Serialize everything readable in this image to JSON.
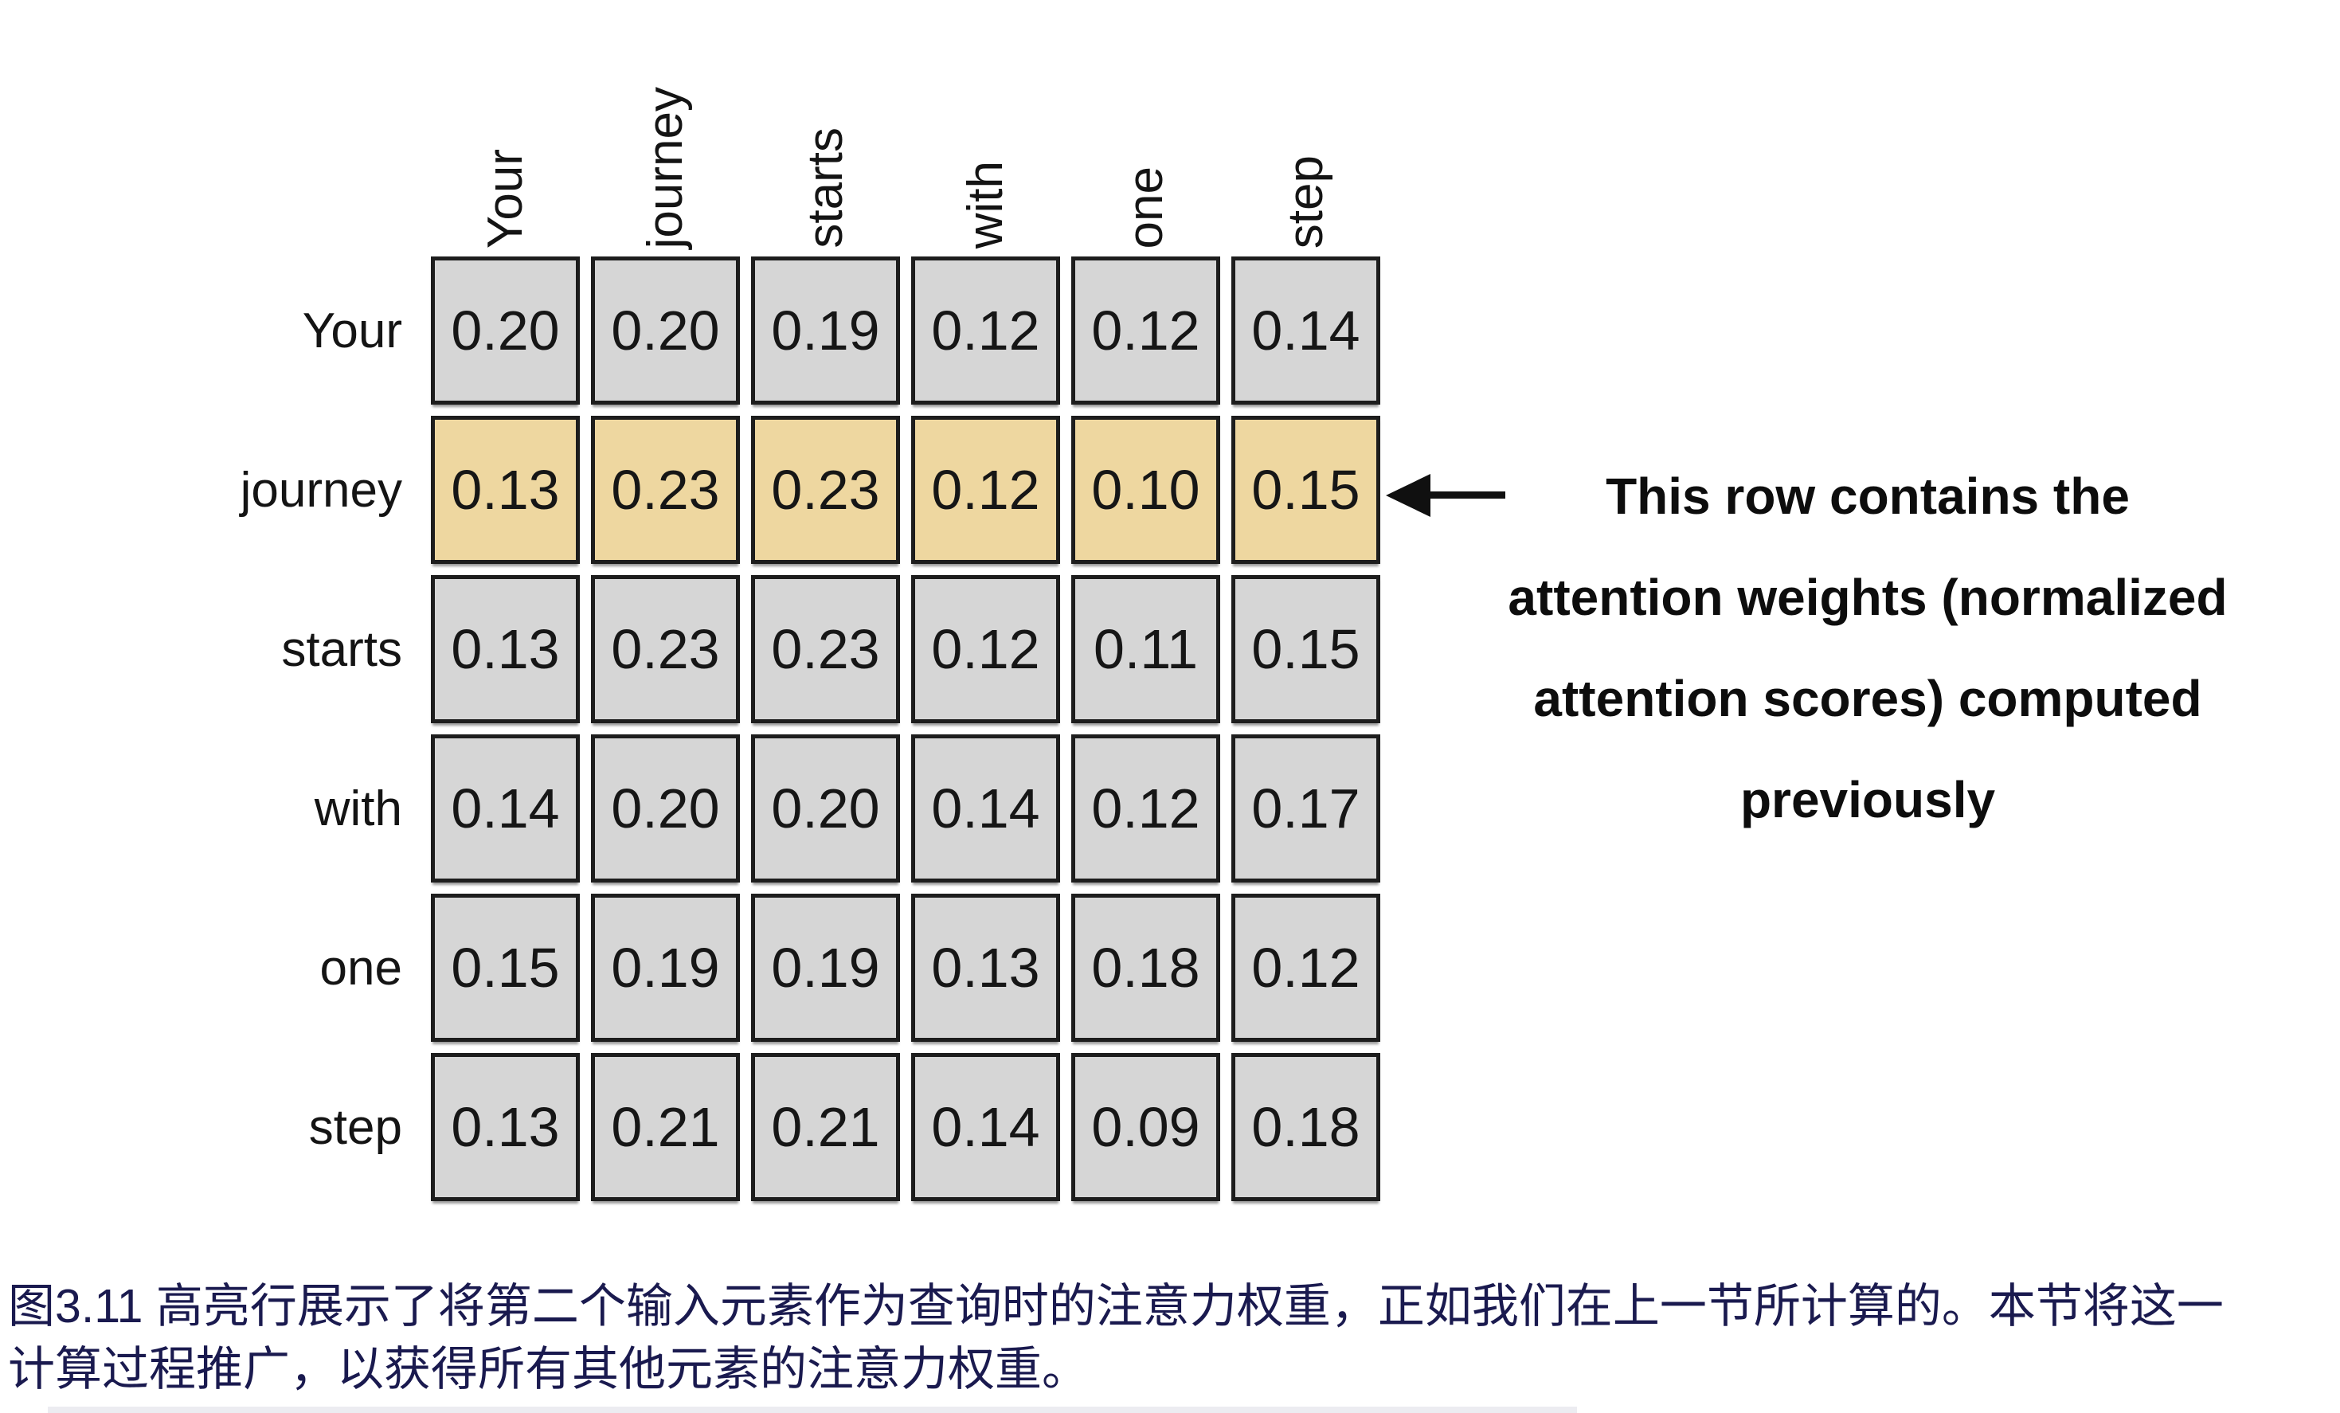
{
  "matrix": {
    "col_labels": [
      "Your",
      "journey",
      "starts",
      "with",
      "one",
      "step"
    ],
    "rows": [
      {
        "label": "Your",
        "highlighted": false,
        "values": [
          "0.20",
          "0.20",
          "0.19",
          "0.12",
          "0.12",
          "0.14"
        ]
      },
      {
        "label": "journey",
        "highlighted": true,
        "values": [
          "0.13",
          "0.23",
          "0.23",
          "0.12",
          "0.10",
          "0.15"
        ]
      },
      {
        "label": "starts",
        "highlighted": false,
        "values": [
          "0.13",
          "0.23",
          "0.23",
          "0.12",
          "0.11",
          "0.15"
        ]
      },
      {
        "label": "with",
        "highlighted": false,
        "values": [
          "0.14",
          "0.20",
          "0.20",
          "0.14",
          "0.12",
          "0.17"
        ]
      },
      {
        "label": "one",
        "highlighted": false,
        "values": [
          "0.15",
          "0.19",
          "0.19",
          "0.13",
          "0.18",
          "0.12"
        ]
      },
      {
        "label": "step",
        "highlighted": false,
        "values": [
          "0.13",
          "0.21",
          "0.21",
          "0.14",
          "0.09",
          "0.18"
        ]
      }
    ]
  },
  "annotation": {
    "lines": [
      "This row contains the",
      "attention weights (normalized",
      "attention scores) computed",
      "previously"
    ]
  },
  "caption": {
    "lines": [
      "图3.11 高亮行展示了将第二个输入元素作为查询时的注意力权重，正如我们在上一节所计算的。本节将这一",
      "计算过程推广，以获得所有其他元素的注意力权重。"
    ]
  },
  "colors": {
    "cell_background": "#d6d6d6",
    "cell_highlight": "#eed7a0",
    "cell_border": "#1d1d1d",
    "annotation_text": "#0d0d0d",
    "caption_text": "#1a1a4f"
  },
  "chart_data": {
    "type": "heatmap",
    "title": "",
    "x_labels": [
      "Your",
      "journey",
      "starts",
      "with",
      "one",
      "step"
    ],
    "y_labels": [
      "Your",
      "journey",
      "starts",
      "with",
      "one",
      "step"
    ],
    "values": [
      [
        0.2,
        0.2,
        0.19,
        0.12,
        0.12,
        0.14
      ],
      [
        0.13,
        0.23,
        0.23,
        0.12,
        0.1,
        0.15
      ],
      [
        0.13,
        0.23,
        0.23,
        0.12,
        0.11,
        0.15
      ],
      [
        0.14,
        0.2,
        0.2,
        0.14,
        0.12,
        0.17
      ],
      [
        0.15,
        0.19,
        0.19,
        0.13,
        0.18,
        0.12
      ],
      [
        0.13,
        0.21,
        0.21,
        0.14,
        0.09,
        0.18
      ]
    ],
    "highlighted_row_label": "journey",
    "highlighted_row_index": 1,
    "annotation": "This row contains the attention weights (normalized attention scores) computed previously",
    "caption": "图3.11 高亮行展示了将第二个输入元素作为查询时的注意力权重，正如我们在上一节所计算的。本节将这一计算过程推广，以获得所有其他元素的注意力权重。",
    "legend_position": "none",
    "grid": false
  }
}
